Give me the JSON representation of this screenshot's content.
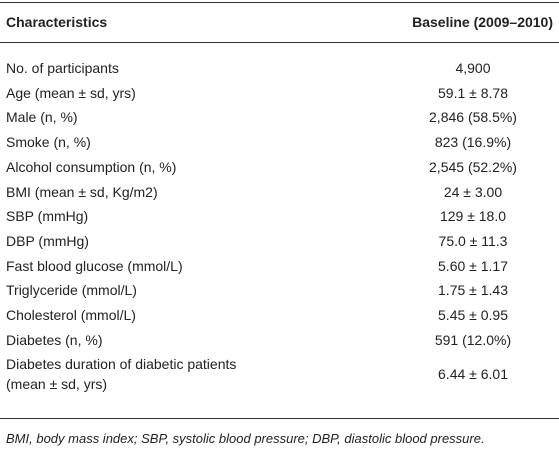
{
  "table": {
    "header": [
      "Characteristics",
      "Baseline (2009–2010)"
    ],
    "rows": [
      [
        "No. of participants",
        "4,900"
      ],
      [
        "Age (mean ± sd, yrs)",
        "59.1 ± 8.78"
      ],
      [
        "Male (n, %)",
        "2,846 (58.5%)"
      ],
      [
        "Smoke (n, %)",
        "823 (16.9%)"
      ],
      [
        "Alcohol consumption (n, %)",
        "2,545 (52.2%)"
      ],
      [
        "BMI (mean ± sd, Kg/m2)",
        "24 ± 3.00"
      ],
      [
        "SBP (mmHg)",
        "129 ± 18.0"
      ],
      [
        "DBP (mmHg)",
        "75.0 ± 11.3"
      ],
      [
        "Fast blood glucose (mmol/L)",
        "5.60 ± 1.17"
      ],
      [
        "Triglyceride (mmol/L)",
        "1.75 ± 1.43"
      ],
      [
        "Cholesterol (mmol/L)",
        "5.45 ± 0.95"
      ],
      [
        "Diabetes (n, %)",
        "591 (12.0%)"
      ],
      [
        [
          "Diabetes duration of diabetic patients",
          "(mean ± sd, yrs)"
        ],
        "6.44 ± 6.01"
      ]
    ],
    "footnote": "BMI, body mass index; SBP, systolic blood pressure; DBP, diastolic blood pressure."
  }
}
